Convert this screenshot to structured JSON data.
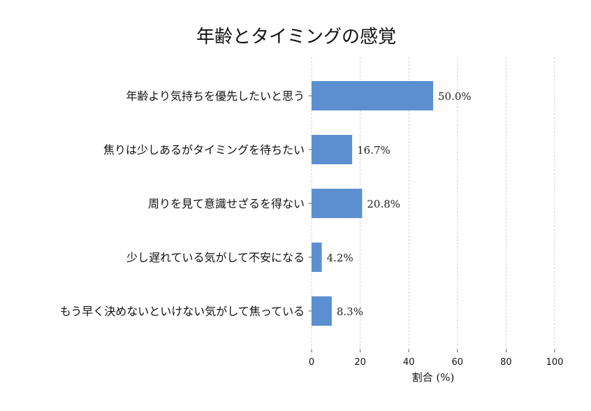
{
  "chart_data": {
    "type": "bar",
    "orientation": "horizontal",
    "title": "年齢とタイミングの感覚",
    "xlabel": "割合 (%)",
    "ylabel": "",
    "categories": [
      "年齢より気持ちを優先したいと思う",
      "焦りは少しあるがタイミングを待ちたい",
      "周りを見て意識せざるを得ない",
      "少し遅れている気がして不安になる",
      "もう早く決めないといけない気がして焦っている"
    ],
    "values": [
      50.0,
      16.7,
      20.8,
      4.2,
      8.3
    ],
    "value_labels": [
      "50.0%",
      "16.7%",
      "20.8%",
      "4.2%",
      "8.3%"
    ],
    "xlim": [
      0,
      100
    ],
    "xticks": [
      "0",
      "20",
      "40",
      "60",
      "80",
      "100"
    ],
    "grid": "vertical dashed",
    "bar_color": "#5b8fd0"
  }
}
